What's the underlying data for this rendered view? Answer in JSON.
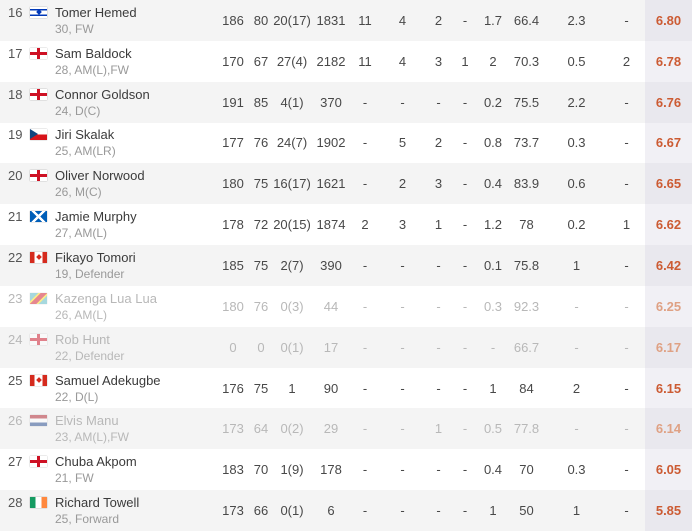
{
  "colors": {
    "rating": "#cc5b33",
    "rating-faded": "#dfa184",
    "stripe": "#f4f4f4",
    "rating-col-bg": "#f1f0f5",
    "rating-col-bg-striped": "#e9e8ee",
    "faded-text": "#b8b8b8"
  },
  "players": [
    {
      "rank": "16",
      "flag": "israel",
      "name": "Tomer Hemed",
      "meta": "30, FW",
      "faded": false,
      "stats": {
        "height": "186",
        "weight": "80",
        "apps": "20(17)",
        "mins": "1831",
        "goals": "11",
        "assists": "4",
        "yellow": "2",
        "red": "-",
        "spg": "1.7",
        "pass_pct": "66.4",
        "aerials": "2.3",
        "motm": "-",
        "rating": "6.80"
      }
    },
    {
      "rank": "17",
      "flag": "england",
      "name": "Sam Baldock",
      "meta": "28, AM(L),FW",
      "faded": false,
      "stats": {
        "height": "170",
        "weight": "67",
        "apps": "27(4)",
        "mins": "2182",
        "goals": "11",
        "assists": "4",
        "yellow": "3",
        "red": "1",
        "spg": "2",
        "pass_pct": "70.3",
        "aerials": "0.5",
        "motm": "2",
        "rating": "6.78"
      }
    },
    {
      "rank": "18",
      "flag": "england",
      "name": "Connor Goldson",
      "meta": "24, D(C)",
      "faded": false,
      "stats": {
        "height": "191",
        "weight": "85",
        "apps": "4(1)",
        "mins": "370",
        "goals": "-",
        "assists": "-",
        "yellow": "-",
        "red": "-",
        "spg": "0.2",
        "pass_pct": "75.5",
        "aerials": "2.2",
        "motm": "-",
        "rating": "6.76"
      }
    },
    {
      "rank": "19",
      "flag": "czech-republic",
      "name": "Jiri Skalak",
      "meta": "25, AM(LR)",
      "faded": false,
      "stats": {
        "height": "177",
        "weight": "76",
        "apps": "24(7)",
        "mins": "1902",
        "goals": "-",
        "assists": "5",
        "yellow": "2",
        "red": "-",
        "spg": "0.8",
        "pass_pct": "73.7",
        "aerials": "0.3",
        "motm": "-",
        "rating": "6.67"
      }
    },
    {
      "rank": "20",
      "flag": "northern-ireland",
      "name": "Oliver Norwood",
      "meta": "26, M(C)",
      "faded": false,
      "stats": {
        "height": "180",
        "weight": "75",
        "apps": "16(17)",
        "mins": "1621",
        "goals": "-",
        "assists": "2",
        "yellow": "3",
        "red": "-",
        "spg": "0.4",
        "pass_pct": "83.9",
        "aerials": "0.6",
        "motm": "-",
        "rating": "6.65"
      }
    },
    {
      "rank": "21",
      "flag": "scotland",
      "name": "Jamie Murphy",
      "meta": "27, AM(L)",
      "faded": false,
      "stats": {
        "height": "178",
        "weight": "72",
        "apps": "20(15)",
        "mins": "1874",
        "goals": "2",
        "assists": "3",
        "yellow": "1",
        "red": "-",
        "spg": "1.2",
        "pass_pct": "78",
        "aerials": "0.2",
        "motm": "1",
        "rating": "6.62"
      }
    },
    {
      "rank": "22",
      "flag": "canada",
      "name": "Fikayo Tomori",
      "meta": "19, Defender",
      "faded": false,
      "stats": {
        "height": "185",
        "weight": "75",
        "apps": "2(7)",
        "mins": "390",
        "goals": "-",
        "assists": "-",
        "yellow": "-",
        "red": "-",
        "spg": "0.1",
        "pass_pct": "75.8",
        "aerials": "1",
        "motm": "-",
        "rating": "6.42"
      }
    },
    {
      "rank": "23",
      "flag": "dr-congo",
      "name": "Kazenga Lua Lua",
      "meta": "26, AM(L)",
      "faded": true,
      "stats": {
        "height": "180",
        "weight": "76",
        "apps": "0(3)",
        "mins": "44",
        "goals": "-",
        "assists": "-",
        "yellow": "-",
        "red": "-",
        "spg": "0.3",
        "pass_pct": "92.3",
        "aerials": "-",
        "motm": "-",
        "rating": "6.25"
      }
    },
    {
      "rank": "24",
      "flag": "england",
      "name": "Rob Hunt",
      "meta": "22, Defender",
      "faded": true,
      "stats": {
        "height": "0",
        "weight": "0",
        "apps": "0(1)",
        "mins": "17",
        "goals": "-",
        "assists": "-",
        "yellow": "-",
        "red": "-",
        "spg": "-",
        "pass_pct": "66.7",
        "aerials": "-",
        "motm": "-",
        "rating": "6.17"
      }
    },
    {
      "rank": "25",
      "flag": "canada",
      "name": "Samuel Adekugbe",
      "meta": "22, D(L)",
      "faded": false,
      "stats": {
        "height": "176",
        "weight": "75",
        "apps": "1",
        "mins": "90",
        "goals": "-",
        "assists": "-",
        "yellow": "-",
        "red": "-",
        "spg": "1",
        "pass_pct": "84",
        "aerials": "2",
        "motm": "-",
        "rating": "6.15"
      }
    },
    {
      "rank": "26",
      "flag": "netherlands",
      "name": "Elvis Manu",
      "meta": "23, AM(L),FW",
      "faded": true,
      "stats": {
        "height": "173",
        "weight": "64",
        "apps": "0(2)",
        "mins": "29",
        "goals": "-",
        "assists": "-",
        "yellow": "1",
        "red": "-",
        "spg": "0.5",
        "pass_pct": "77.8",
        "aerials": "-",
        "motm": "-",
        "rating": "6.14"
      }
    },
    {
      "rank": "27",
      "flag": "england",
      "name": "Chuba Akpom",
      "meta": "21, FW",
      "faded": false,
      "stats": {
        "height": "183",
        "weight": "70",
        "apps": "1(9)",
        "mins": "178",
        "goals": "-",
        "assists": "-",
        "yellow": "-",
        "red": "-",
        "spg": "0.4",
        "pass_pct": "70",
        "aerials": "0.3",
        "motm": "-",
        "rating": "6.05"
      }
    },
    {
      "rank": "28",
      "flag": "ireland",
      "name": "Richard Towell",
      "meta": "25, Forward",
      "faded": false,
      "stats": {
        "height": "173",
        "weight": "66",
        "apps": "0(1)",
        "mins": "6",
        "goals": "-",
        "assists": "-",
        "yellow": "-",
        "red": "-",
        "spg": "1",
        "pass_pct": "50",
        "aerials": "1",
        "motm": "-",
        "rating": "5.85"
      }
    }
  ]
}
